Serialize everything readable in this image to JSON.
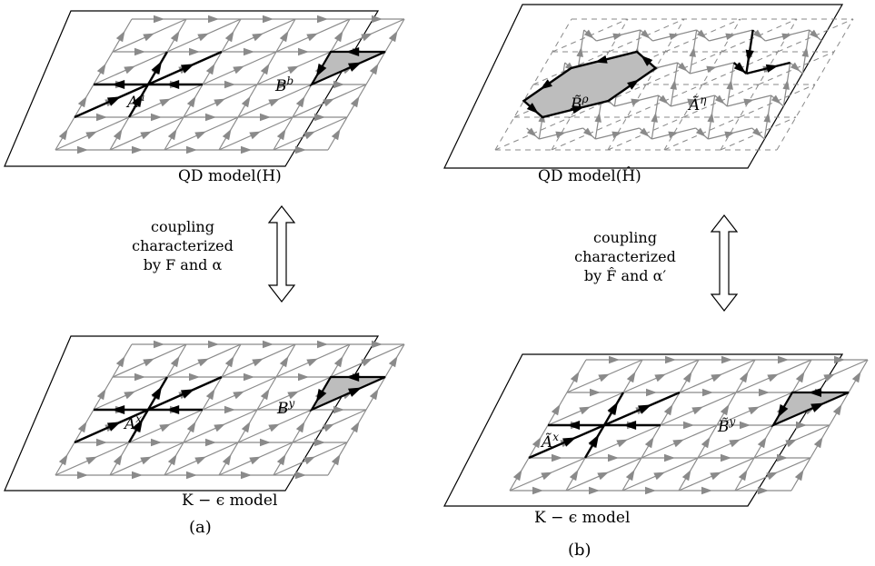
{
  "panels": [
    {
      "id": "a",
      "label": "(a)",
      "top_caption": "QD model(H)",
      "bottom_caption": "K − ϵ model",
      "coupling": [
        "coupling",
        "characterized",
        "by F and α"
      ],
      "top_labels": {
        "A": "A",
        "A_sup": "a",
        "B": "B",
        "B_sup": "b"
      },
      "bottom_labels": {
        "A": "A",
        "A_sup": "x",
        "B": "B",
        "B_sup": "y"
      }
    },
    {
      "id": "b",
      "label": "(b)",
      "top_caption": "QD model(Ĥ)",
      "bottom_caption": "K − ϵ model",
      "coupling": [
        "coupling",
        "characterized",
        "by F̂ and α′"
      ],
      "top_labels": {
        "A": "Ã",
        "A_sup": "η",
        "B": "B̃",
        "B_sup": "ρ"
      },
      "bottom_labels": {
        "A": "Ã",
        "A_sup": "x",
        "B": "B̃",
        "B_sup": "y"
      }
    }
  ],
  "colors": {
    "lattice": "#8a8a8a",
    "arrow": "#8a8a8a",
    "highlight": "#000000",
    "face_fill": "#bdbdbd",
    "frame": "#000000"
  }
}
